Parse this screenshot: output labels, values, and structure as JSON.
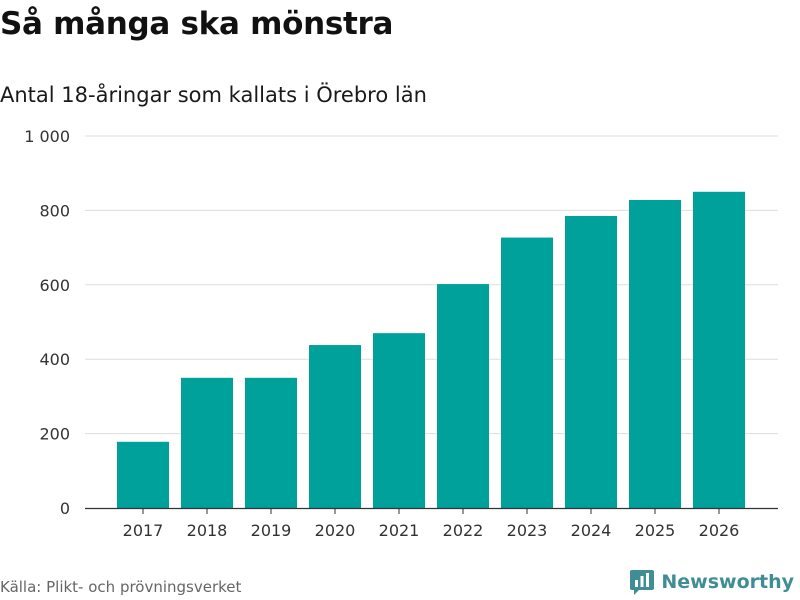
{
  "header": {
    "title": "Så många ska mönstra",
    "subtitle": "Antal 18-åringar som kallats i Örebro län"
  },
  "footer": {
    "source": "Källa: Plikt- och prövningsverket",
    "brand": "Newsworthy",
    "brand_icon": "newsworthy-logo-icon"
  },
  "colors": {
    "bar": "#00a19a",
    "grid": "#dddddd",
    "axis": "#333333",
    "brand": "#3f8e96"
  },
  "chart_data": {
    "type": "bar",
    "title": "Så många ska mönstra",
    "subtitle": "Antal 18-åringar som kallats i Örebro län",
    "xlabel": "",
    "ylabel": "",
    "categories": [
      "2017",
      "2018",
      "2019",
      "2020",
      "2021",
      "2022",
      "2023",
      "2024",
      "2025",
      "2026"
    ],
    "values": [
      178,
      350,
      350,
      438,
      470,
      602,
      727,
      785,
      828,
      850
    ],
    "ylim": [
      0,
      1000
    ],
    "yticks": [
      0,
      200,
      400,
      600,
      800,
      1000
    ],
    "ytick_labels": [
      "0",
      "200",
      "400",
      "600",
      "800",
      "1 000"
    ],
    "grid": true,
    "legend": "none"
  }
}
